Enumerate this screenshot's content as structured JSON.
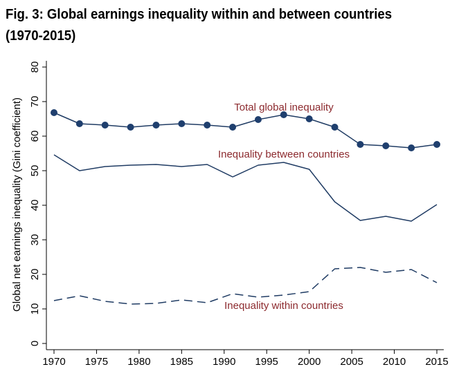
{
  "title_line1": "Fig. 3: Global earnings inequality within and between countries",
  "title_line2": "(1970-2015)",
  "colors": {
    "line": "#1f3b63",
    "marker": "#1f3f6e",
    "label": "#8c2a2e",
    "axis": "#000000"
  },
  "chart_data": {
    "type": "line",
    "title": "Fig. 3: Global earnings inequality within and between countries (1970-2015)",
    "xlabel": "",
    "ylabel": "Global net earnings inequality (Gini coefficient)",
    "xlim": [
      1970,
      2015
    ],
    "ylim": [
      0,
      80
    ],
    "xticks": [
      1970,
      1975,
      1980,
      1985,
      1990,
      1995,
      2000,
      2005,
      2010,
      2015
    ],
    "yticks": [
      0,
      10,
      20,
      30,
      40,
      50,
      60,
      70,
      80
    ],
    "grid": false,
    "x": [
      1970,
      1973,
      1976,
      1979,
      1982,
      1985,
      1988,
      1991,
      1994,
      1997,
      2000,
      2003,
      2006,
      2009,
      2012,
      2015
    ],
    "series": [
      {
        "name": "Total global inequality",
        "style": "solid-markers",
        "values": [
          66.8,
          63.6,
          63.2,
          62.6,
          63.2,
          63.6,
          63.2,
          62.6,
          64.8,
          66.2,
          65.0,
          62.6,
          57.6,
          57.2,
          56.6,
          57.6
        ]
      },
      {
        "name": "Inequality between countries",
        "style": "solid",
        "values": [
          54.6,
          50.0,
          51.2,
          51.6,
          51.8,
          51.2,
          51.8,
          48.2,
          51.6,
          52.4,
          50.4,
          41.0,
          35.6,
          36.8,
          35.4,
          40.2
        ]
      },
      {
        "name": "Inequality within countries",
        "style": "dashed",
        "values": [
          12.4,
          13.8,
          12.2,
          11.4,
          11.6,
          12.6,
          11.8,
          14.4,
          13.4,
          14.0,
          15.0,
          21.6,
          22.0,
          20.6,
          21.4,
          17.6
        ]
      }
    ],
    "annotations": [
      {
        "text": "Total global inequality",
        "series": 0,
        "x": 1997,
        "y": 67.5
      },
      {
        "text": "Inequality between countries",
        "series": 1,
        "x": 1997,
        "y": 55.0
      },
      {
        "text": "Inequality within countries",
        "series": 2,
        "x": 1993,
        "y": 10.5
      }
    ]
  }
}
